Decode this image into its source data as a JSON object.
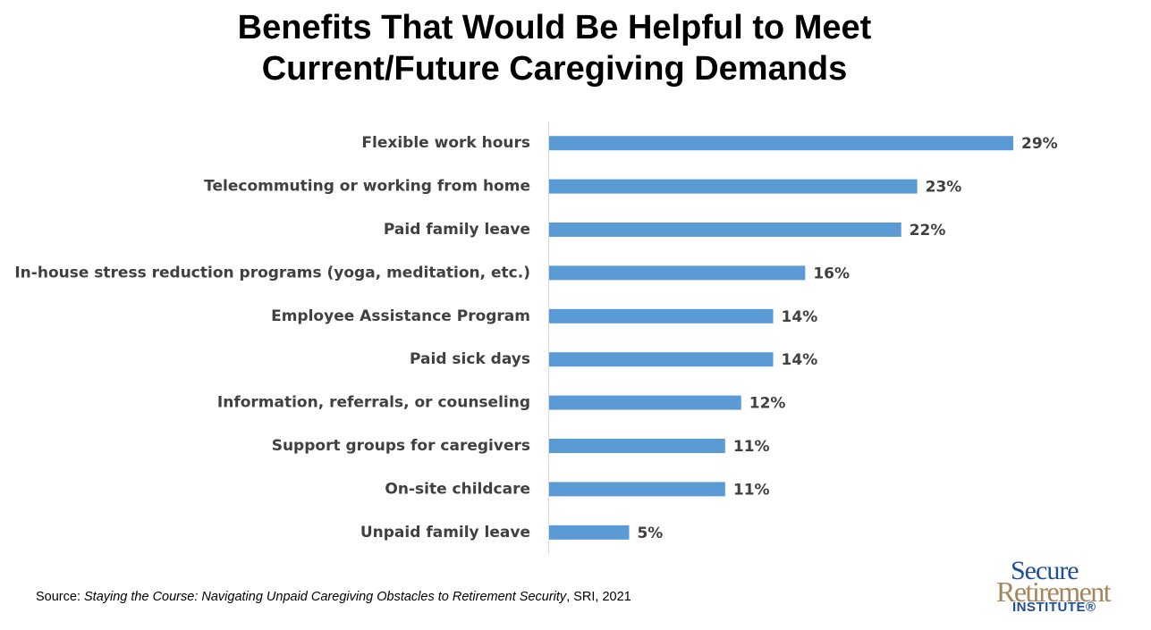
{
  "title_lines": [
    "Benefits That Would Be Helpful to Meet",
    "Current/Future Caregiving Demands"
  ],
  "chart_data": {
    "type": "bar",
    "orientation": "horizontal",
    "categories": [
      "Flexible work hours",
      "Telecommuting or working from home",
      "Paid family leave",
      "In-house stress reduction programs (yoga, meditation, etc.)",
      "Employee Assistance Program",
      "Paid sick days",
      "Information, referrals, or counseling",
      "Support groups for caregivers",
      "On-site childcare",
      "Unpaid family leave"
    ],
    "values": [
      29,
      23,
      22,
      16,
      14,
      14,
      12,
      11,
      11,
      5
    ],
    "value_labels": [
      "29%",
      "23%",
      "22%",
      "16%",
      "14%",
      "14%",
      "12%",
      "11%",
      "11%",
      "5%"
    ],
    "xlim": [
      0,
      35
    ],
    "grid": false,
    "bar_color": "#5b9bd5",
    "label_color": "#404040"
  },
  "source": {
    "prefix": "Source: ",
    "title": "Staying the Course: Navigating Unpaid Caregiving Obstacles to Retirement Security",
    "suffix": ", SRI, 2021"
  },
  "logo": {
    "line1": "Secure",
    "line2": "Retirement",
    "line3": "INSTITUTE®"
  }
}
